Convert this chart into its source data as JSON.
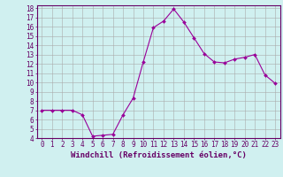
{
  "xlabel": "Windchill (Refroidissement éolien,°C)",
  "x": [
    0,
    1,
    2,
    3,
    4,
    5,
    6,
    7,
    8,
    9,
    10,
    11,
    12,
    13,
    14,
    15,
    16,
    17,
    18,
    19,
    20,
    21,
    22,
    23
  ],
  "y": [
    7.0,
    7.0,
    7.0,
    7.0,
    6.5,
    4.2,
    4.3,
    4.4,
    6.5,
    8.3,
    12.2,
    15.9,
    16.6,
    17.9,
    16.5,
    14.8,
    13.1,
    12.2,
    12.1,
    12.5,
    12.7,
    13.0,
    10.8,
    9.9
  ],
  "line_color": "#990099",
  "marker": "D",
  "marker_size": 2,
  "bg_color": "#d0f0f0",
  "grid_color": "#aaaaaa",
  "ylim": [
    4,
    18
  ],
  "xlim": [
    -0.5,
    23.5
  ],
  "yticks": [
    4,
    5,
    6,
    7,
    8,
    9,
    10,
    11,
    12,
    13,
    14,
    15,
    16,
    17,
    18
  ],
  "xticks": [
    0,
    1,
    2,
    3,
    4,
    5,
    6,
    7,
    8,
    9,
    10,
    11,
    12,
    13,
    14,
    15,
    16,
    17,
    18,
    19,
    20,
    21,
    22,
    23
  ],
  "tick_fontsize": 5.5,
  "label_fontsize": 6.5,
  "axis_color": "#660066"
}
